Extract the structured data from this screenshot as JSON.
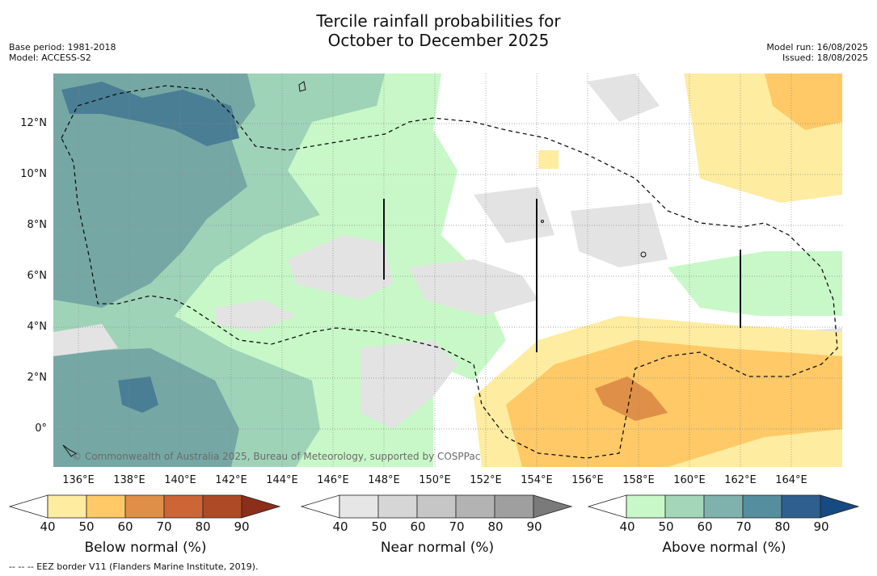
{
  "title": {
    "line1": "Tercile rainfall probabilities for",
    "line2": "October to December 2025"
  },
  "meta_left": {
    "base_period": "Base period: 1981-2018",
    "model": "Model: ACCESS-S2"
  },
  "meta_right": {
    "model_run": "Model run: 16/08/2025",
    "issued": "Issued: 18/08/2025"
  },
  "map": {
    "extent": {
      "lon": [
        135,
        166
      ],
      "lat": [
        -1.5,
        14
      ]
    },
    "lat_labels": [
      "12°N",
      "10°N",
      "8°N",
      "6°N",
      "4°N",
      "2°N",
      "0°"
    ],
    "lon_labels": [
      "136°E",
      "138°E",
      "140°E",
      "142°E",
      "144°E",
      "146°E",
      "148°E",
      "150°E",
      "152°E",
      "154°E",
      "156°E",
      "158°E",
      "160°E",
      "162°E",
      "164°E"
    ],
    "copyright": "© Commonwealth of Australia 2025, Bureau of Meteorology, supported by COSPPac",
    "gridlines": true
  },
  "colorbars": [
    {
      "name": "Below normal (%)",
      "ticks": [
        "40",
        "50",
        "60",
        "70",
        "80",
        "90"
      ],
      "colors": [
        "#ffffff",
        "#feeca0",
        "#fec966",
        "#df8f47",
        "#cc6637",
        "#ae4a25",
        "#8b2e1a"
      ]
    },
    {
      "name": "Near normal (%)",
      "ticks": [
        "40",
        "50",
        "60",
        "70",
        "80",
        "90"
      ],
      "colors": [
        "#ffffff",
        "#e6e6e6",
        "#d6d6d6",
        "#c6c6c6",
        "#b3b3b3",
        "#9f9f9f",
        "#7a7a7a"
      ]
    },
    {
      "name": "Above normal (%)",
      "ticks": [
        "40",
        "50",
        "60",
        "70",
        "80",
        "90"
      ],
      "colors": [
        "#ffffff",
        "#c8f8c8",
        "#a4d7b9",
        "#7fb2ac",
        "#558e9f",
        "#2f5f8e",
        "#164a80"
      ]
    }
  ],
  "footnote": "--  --  -- EEZ border V11 (Flanders Marine Institute, 2019)."
}
